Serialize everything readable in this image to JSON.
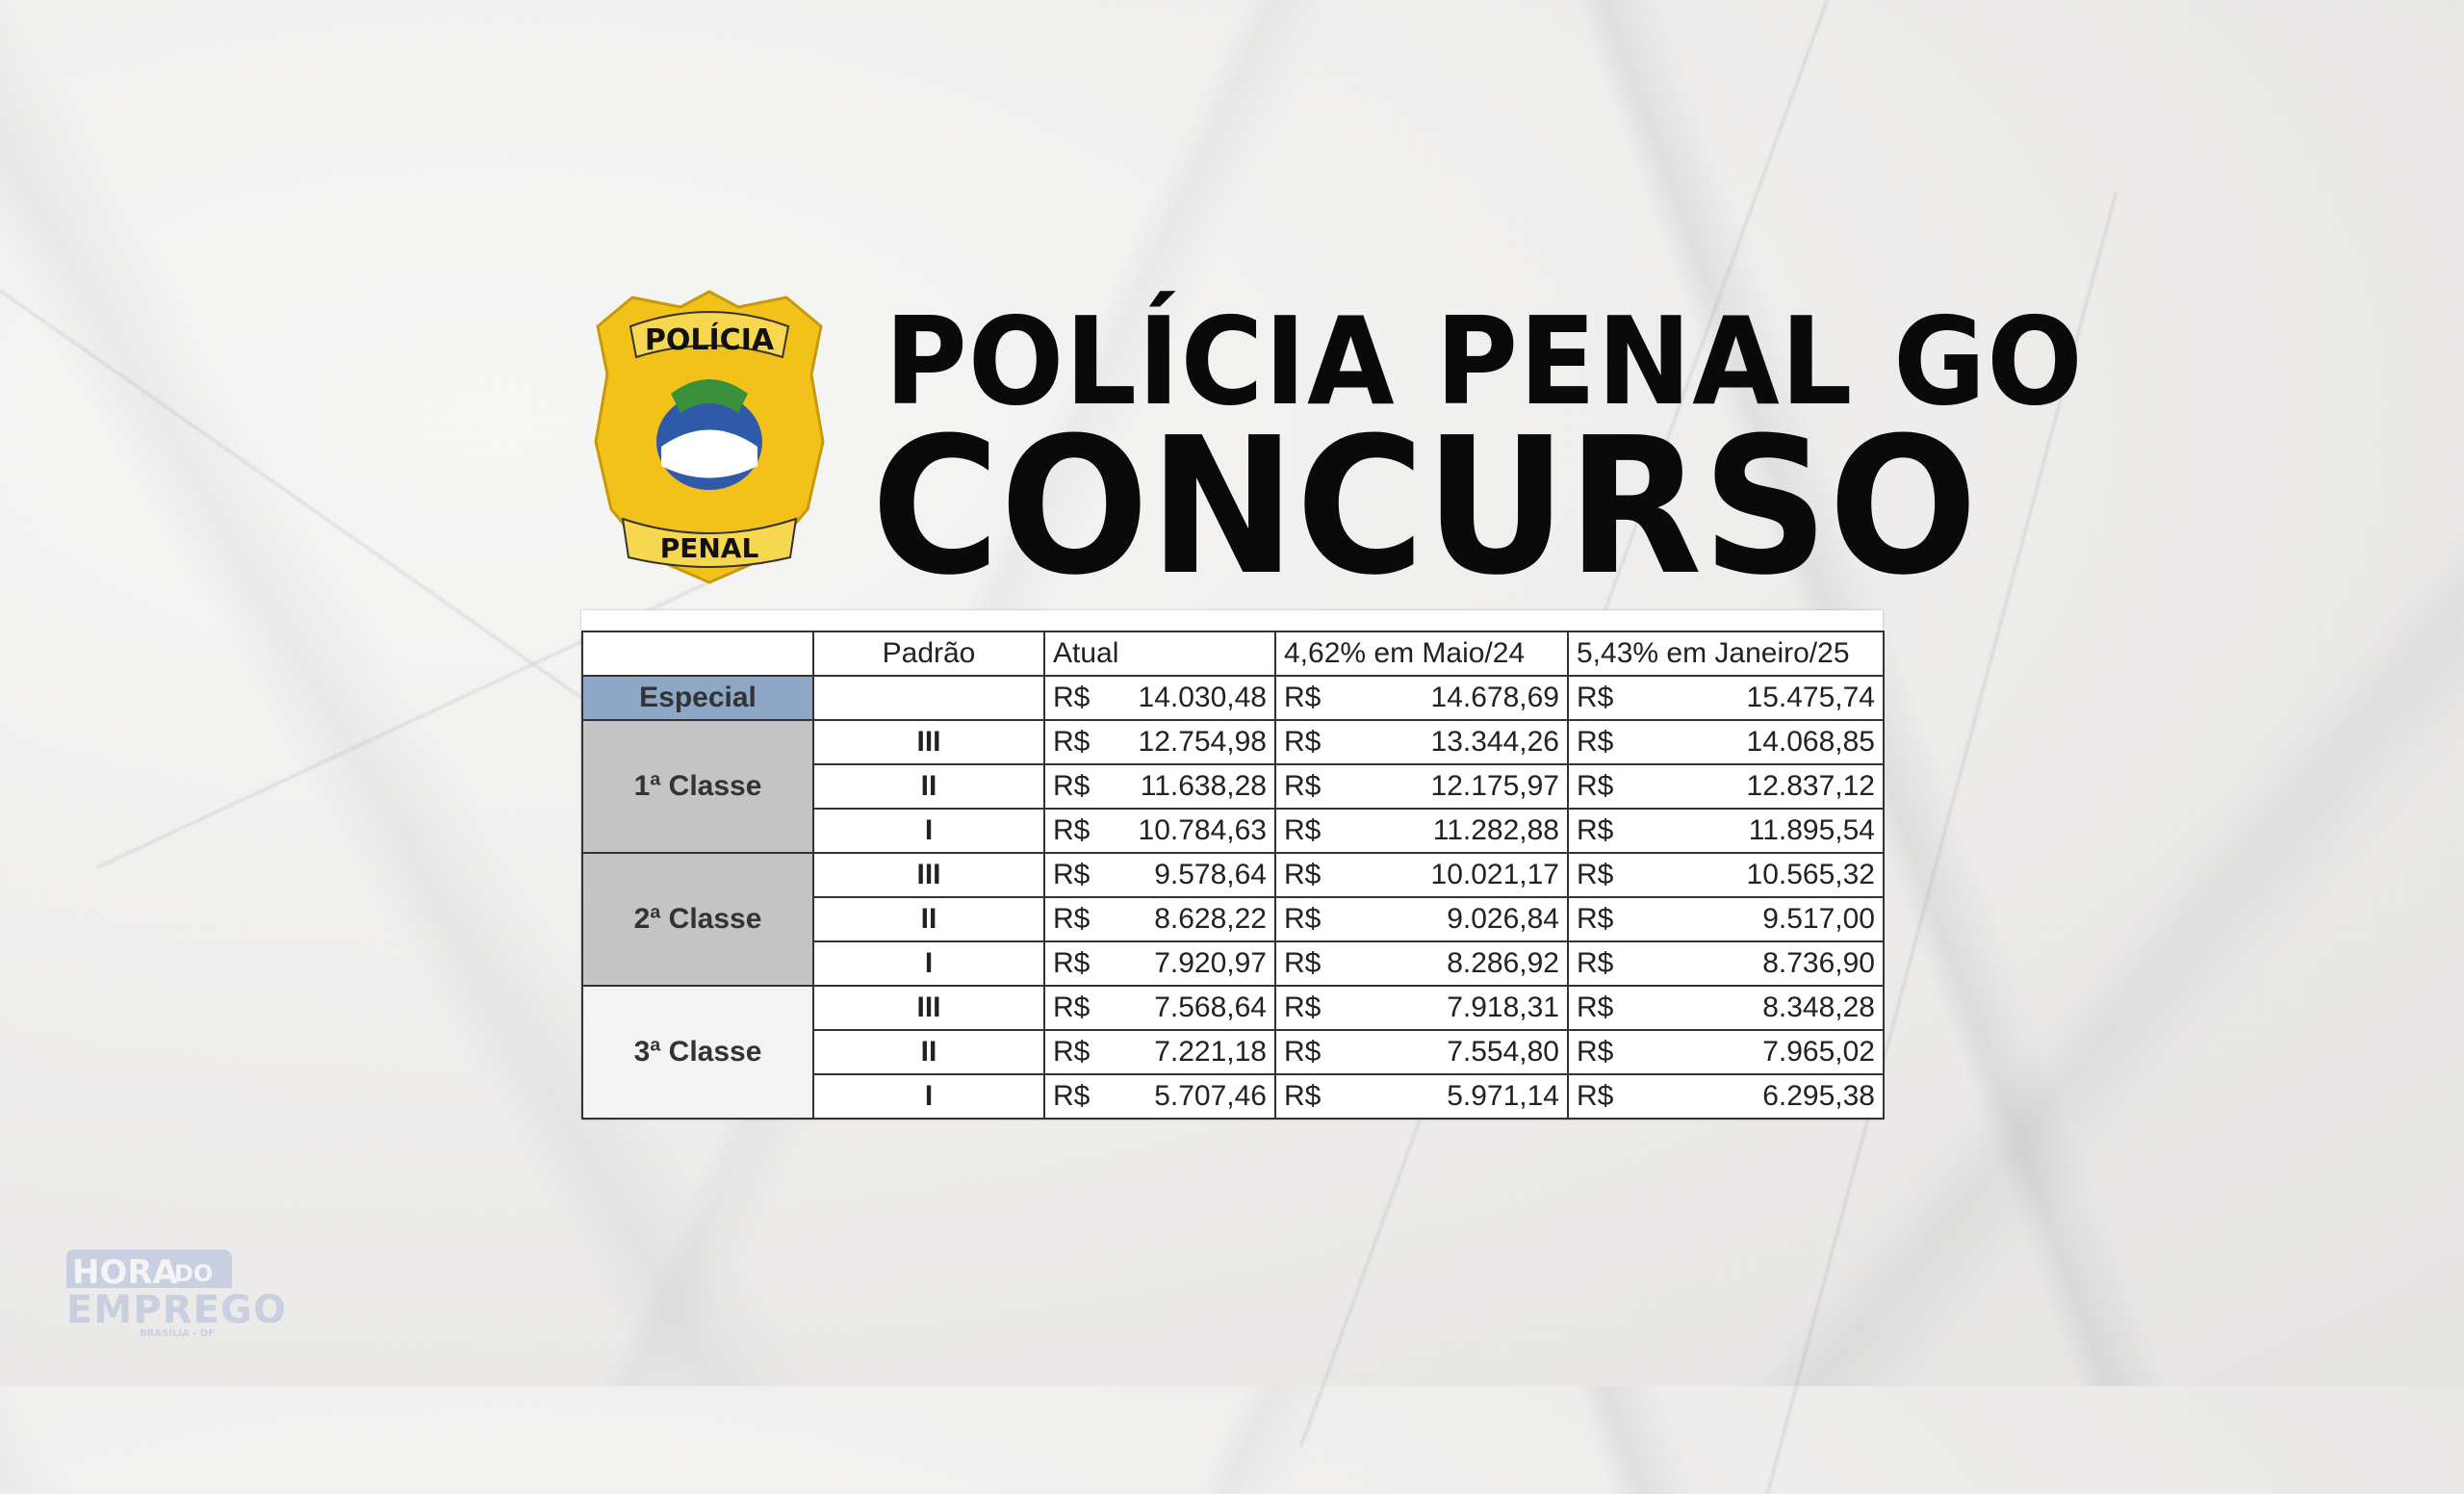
{
  "header": {
    "title_line1": "POLÍCIA PENAL GO",
    "title_line2": "CONCURSO"
  },
  "badge": {
    "text_top": "POLÍCIA",
    "text_bottom": "PENAL",
    "colors": {
      "gold": "#f2c21b",
      "blue": "#2e5aa8",
      "green": "#3a8f3a"
    }
  },
  "table": {
    "headers": [
      "",
      "Padrão",
      "Atual",
      "4,62% em Maio/24",
      "5,43% em Janeiro/25"
    ],
    "currency": "R$",
    "groups": [
      {
        "classe": "Especial",
        "rows": [
          {
            "padrao": "",
            "atual": "14.030,48",
            "maio24": "14.678,69",
            "jan25": "15.475,74"
          }
        ]
      },
      {
        "classe": "1ª Classe",
        "rows": [
          {
            "padrao": "III",
            "atual": "12.754,98",
            "maio24": "13.344,26",
            "jan25": "14.068,85"
          },
          {
            "padrao": "II",
            "atual": "11.638,28",
            "maio24": "12.175,97",
            "jan25": "12.837,12"
          },
          {
            "padrao": "I",
            "atual": "10.784,63",
            "maio24": "11.282,88",
            "jan25": "11.895,54"
          }
        ]
      },
      {
        "classe": "2ª Classe",
        "rows": [
          {
            "padrao": "III",
            "atual": "9.578,64",
            "maio24": "10.021,17",
            "jan25": "10.565,32"
          },
          {
            "padrao": "II",
            "atual": "8.628,22",
            "maio24": "9.026,84",
            "jan25": "9.517,00"
          },
          {
            "padrao": "I",
            "atual": "7.920,97",
            "maio24": "8.286,92",
            "jan25": "8.736,90"
          }
        ]
      },
      {
        "classe": "3ª Classe",
        "rows": [
          {
            "padrao": "III",
            "atual": "7.568,64",
            "maio24": "7.918,31",
            "jan25": "8.348,28"
          },
          {
            "padrao": "II",
            "atual": "7.221,18",
            "maio24": "7.554,80",
            "jan25": "7.965,02"
          },
          {
            "padrao": "I",
            "atual": "5.707,46",
            "maio24": "5.971,14",
            "jan25": "6.295,38"
          }
        ]
      }
    ],
    "colors": {
      "especial": "#8ea7c7",
      "classe": "#c4c4c4"
    }
  },
  "watermark": {
    "line1": "HORA",
    "line1b": "DO",
    "line2": "EMPREGO",
    "line3": "BRASÍLIA - DF",
    "color": "#c7cfe0"
  }
}
